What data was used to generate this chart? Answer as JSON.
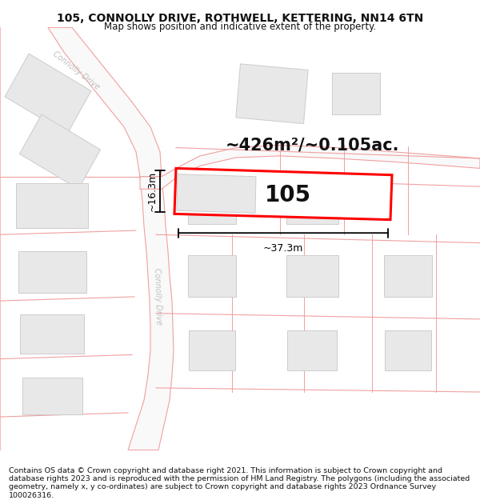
{
  "title": "105, CONNOLLY DRIVE, ROTHWELL, KETTERING, NN14 6TN",
  "subtitle": "Map shows position and indicative extent of the property.",
  "area_label": "~426m²/~0.105ac.",
  "house_number": "105",
  "width_label": "~37.3m",
  "height_label": "~16.3m",
  "footer": "Contains OS data © Crown copyright and database right 2021. This information is subject to Crown copyright and database rights 2023 and is reproduced with the permission of HM Land Registry. The polygons (including the associated geometry, namely x, y co-ordinates) are subject to Crown copyright and database rights 2023 Ordnance Survey 100026316.",
  "bg_color": "#ffffff",
  "road_line_color": "#f0a0a0",
  "road_fill_color": "#fafafa",
  "road_center_fill": "#f8f8f8",
  "building_fill": "#e8e8e8",
  "building_stroke": "#cccccc",
  "highlight_stroke": "#ff0000",
  "road_text_color": "#c0c0c0",
  "title_fontsize": 10,
  "subtitle_fontsize": 8.5,
  "area_fontsize": 15,
  "house_fontsize": 20,
  "dim_fontsize": 9,
  "footer_fontsize": 6.8
}
